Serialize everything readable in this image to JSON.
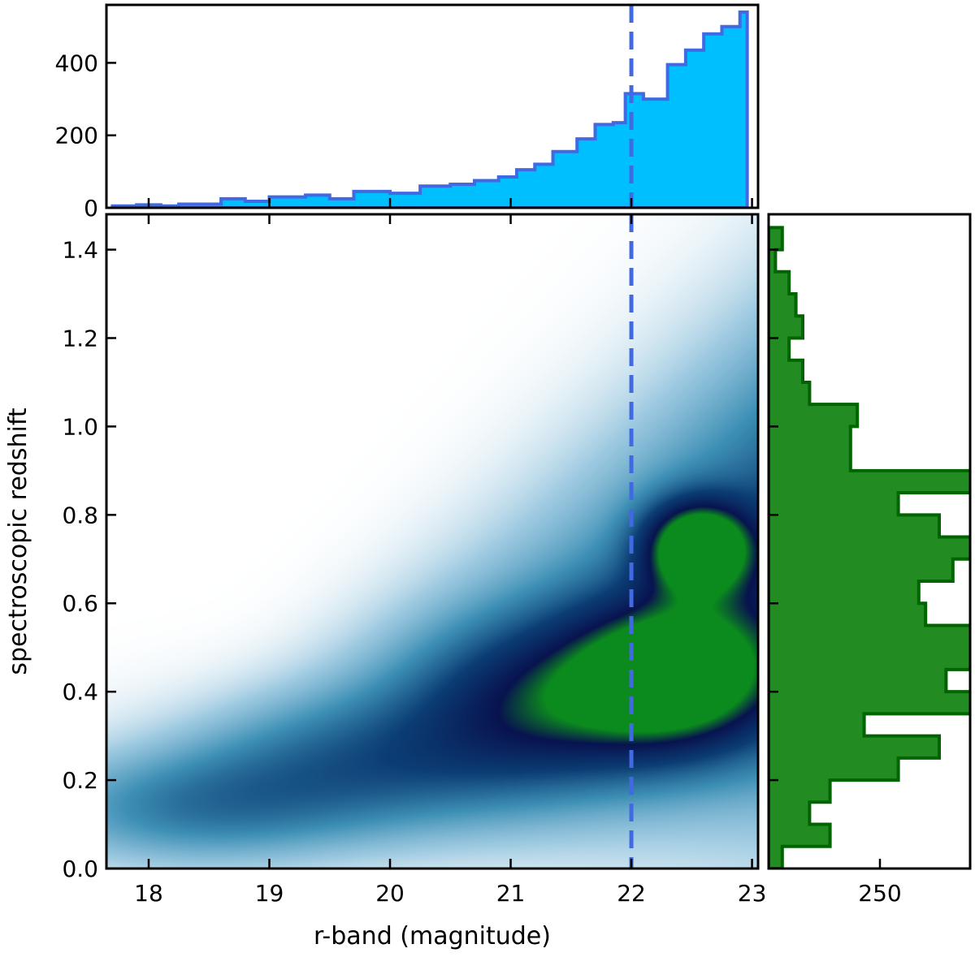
{
  "chart_data": [
    {
      "type": "heatmap",
      "panel": "main",
      "title": "",
      "xlabel": "r-band (magnitude)",
      "ylabel": "spectroscopic redshift",
      "xlim": [
        17.65,
        23.05
      ],
      "ylim": [
        0.0,
        1.48
      ],
      "x_ticks": [
        "18",
        "19",
        "20",
        "21",
        "22",
        "23"
      ],
      "y_ticks": [
        "0.0",
        "0.2",
        "0.4",
        "0.6",
        "0.8",
        "1.0",
        "1.2",
        "1.4"
      ],
      "density_peaks": [
        {
          "x": 22.55,
          "y": 0.73,
          "level": 1.0
        },
        {
          "x": 22.4,
          "y": 0.44,
          "level": 0.85
        },
        {
          "x": 21.3,
          "y": 0.38,
          "level": 0.55
        },
        {
          "x": 19.8,
          "y": 0.25,
          "level": 0.35
        },
        {
          "x": 18.2,
          "y": 0.12,
          "level": 0.2
        }
      ],
      "colormap": [
        "#ffffff",
        "#9ecae1",
        "#3d8fb5",
        "#0b3d74",
        "#08134f",
        "#0b8a1e"
      ],
      "cut_line": {
        "x": 22.0,
        "color": "#4169e1",
        "style": "dashed"
      },
      "grid": false
    },
    {
      "type": "bar",
      "panel": "top-histogram",
      "xlim": [
        17.65,
        23.05
      ],
      "ylim": [
        0,
        560
      ],
      "y_ticks": [
        "0",
        "200",
        "400"
      ],
      "fill": "#00bfff",
      "edge": "#4169e1",
      "bin_edges": [
        17.7,
        17.9,
        18.1,
        18.25,
        18.6,
        18.8,
        19.0,
        19.3,
        19.5,
        19.7,
        20.0,
        20.25,
        20.5,
        20.7,
        20.9,
        21.05,
        21.2,
        21.35,
        21.55,
        21.7,
        21.85,
        21.95,
        22.1,
        22.3,
        22.45,
        22.6,
        22.75,
        22.9
      ],
      "values": [
        5,
        8,
        5,
        10,
        25,
        18,
        30,
        35,
        25,
        45,
        40,
        60,
        65,
        75,
        85,
        105,
        120,
        155,
        190,
        230,
        235,
        315,
        300,
        395,
        435,
        480,
        500,
        540
      ],
      "cut_line": {
        "x": 22.0
      }
    },
    {
      "type": "bar",
      "panel": "right-histogram",
      "orientation": "horizontal",
      "ylim": [
        0.0,
        1.48
      ],
      "x_ticks": [
        "250"
      ],
      "fill": "#228b22",
      "edge": "#006400",
      "bin_edges": [
        0.0,
        0.05,
        0.1,
        0.15,
        0.2,
        0.25,
        0.3,
        0.35,
        0.4,
        0.45,
        0.5,
        0.55,
        0.6,
        0.65,
        0.7,
        0.75,
        0.8,
        0.85,
        0.9,
        0.95,
        1.0,
        1.05,
        1.1,
        1.15,
        1.2,
        1.25,
        1.3,
        1.35,
        1.4,
        1.45
      ],
      "values": [
        2,
        9,
        6,
        9,
        19,
        25,
        14,
        41,
        26,
        38,
        31,
        23,
        22,
        27,
        30,
        25,
        19,
        33,
        12,
        12,
        13,
        6,
        5,
        3,
        5,
        4,
        3,
        1,
        2,
        1
      ]
    }
  ]
}
